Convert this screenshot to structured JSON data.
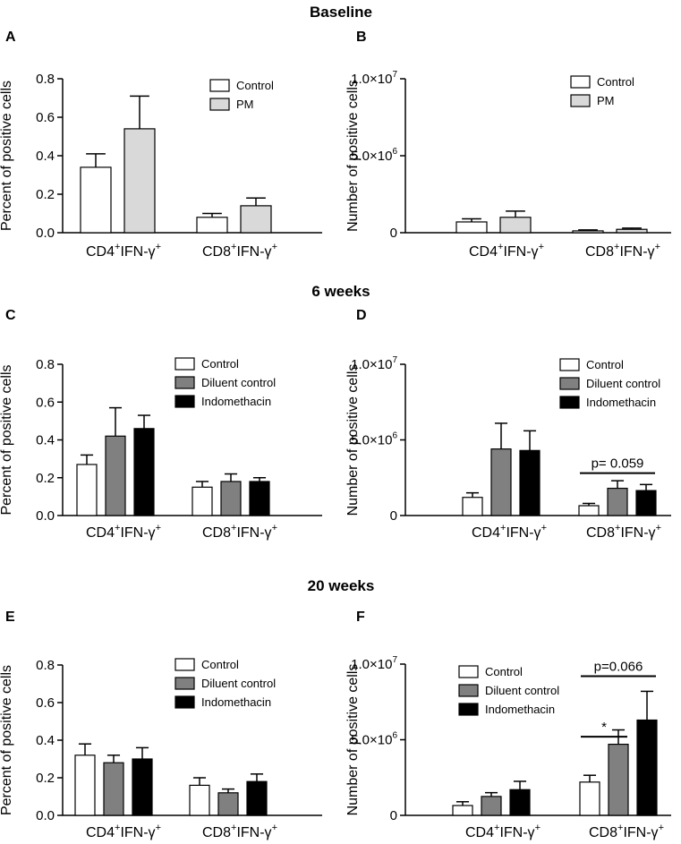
{
  "sections": [
    {
      "title": "Baseline"
    },
    {
      "title": "6 weeks"
    },
    {
      "title": "20 weeks"
    }
  ],
  "colors": {
    "Control": "#ffffff",
    "PM": "#d9d9d9",
    "Diluent control": "#808080",
    "Indomethacin": "#000000"
  },
  "chart_data": [
    {
      "type": "bar",
      "panel": "A",
      "section": "Baseline",
      "ylabel": "Percent of positive cells",
      "ylim": [
        0,
        0.8
      ],
      "yticks": [
        "0.0",
        "0.2",
        "0.4",
        "0.6",
        "0.8"
      ],
      "yticks_values": [
        0,
        0.2,
        0.4,
        0.6,
        0.8
      ],
      "categories": [
        {
          "base": "CD4",
          "sup1": "+",
          "mid": "IFN-γ",
          "sup2": "+"
        },
        {
          "base": "CD8",
          "sup1": "+",
          "mid": "IFN-γ",
          "sup2": "+"
        }
      ],
      "series": [
        {
          "name": "Control",
          "values": [
            0.34,
            0.08
          ],
          "errors": [
            0.07,
            0.02
          ]
        },
        {
          "name": "PM",
          "values": [
            0.54,
            0.14
          ],
          "errors": [
            0.17,
            0.04
          ]
        }
      ],
      "legend": "top-right",
      "annotations": []
    },
    {
      "type": "bar",
      "panel": "B",
      "section": "Baseline",
      "ylabel": "Number of positive cells",
      "ylim": [
        0,
        10000000
      ],
      "yticks": [
        {
          "plain": "0"
        },
        {
          "mant": "5.0×10",
          "exp": "6"
        },
        {
          "mant": "1.0×10",
          "exp": "7"
        }
      ],
      "yticks_values": [
        0,
        5000000,
        10000000
      ],
      "categories": [
        {
          "base": "CD4",
          "sup1": "+",
          "mid": "IFN-γ",
          "sup2": "+"
        },
        {
          "base": "CD8",
          "sup1": "+",
          "mid": "IFN-γ",
          "sup2": "+"
        }
      ],
      "series": [
        {
          "name": "Control",
          "values": [
            700000,
            120000
          ],
          "errors": [
            200000,
            60000
          ]
        },
        {
          "name": "PM",
          "values": [
            1000000,
            220000
          ],
          "errors": [
            400000,
            80000
          ]
        }
      ],
      "legend": "top-right",
      "annotations": []
    },
    {
      "type": "bar",
      "panel": "C",
      "section": "6 weeks",
      "ylabel": "Percent of positive cells",
      "ylim": [
        0,
        0.8
      ],
      "yticks": [
        "0.0",
        "0.2",
        "0.4",
        "0.6",
        "0.8"
      ],
      "yticks_values": [
        0,
        0.2,
        0.4,
        0.6,
        0.8
      ],
      "categories": [
        {
          "base": "CD4",
          "sup1": "+",
          "mid": "IFN-γ",
          "sup2": "+"
        },
        {
          "base": "CD8",
          "sup1": "+",
          "mid": "IFN-γ",
          "sup2": "+"
        }
      ],
      "series": [
        {
          "name": "Control",
          "values": [
            0.27,
            0.15
          ],
          "errors": [
            0.05,
            0.03
          ]
        },
        {
          "name": "Diluent control",
          "values": [
            0.42,
            0.18
          ],
          "errors": [
            0.15,
            0.04
          ]
        },
        {
          "name": "Indomethacin",
          "values": [
            0.46,
            0.18
          ],
          "errors": [
            0.07,
            0.02
          ]
        }
      ],
      "legend": "top-right",
      "annotations": []
    },
    {
      "type": "bar",
      "panel": "D",
      "section": "6 weeks",
      "ylabel": "Number of positive cells",
      "ylim": [
        0,
        10000000
      ],
      "yticks": [
        {
          "plain": "0"
        },
        {
          "mant": "5.0×10",
          "exp": "6"
        },
        {
          "mant": "1.0×10",
          "exp": "7"
        }
      ],
      "yticks_values": [
        0,
        5000000,
        10000000
      ],
      "categories": [
        {
          "base": "CD4",
          "sup1": "+",
          "mid": "IFN-γ",
          "sup2": "+"
        },
        {
          "base": "CD8",
          "sup1": "+",
          "mid": "IFN-γ",
          "sup2": "+"
        }
      ],
      "series": [
        {
          "name": "Control",
          "values": [
            1200000,
            650000
          ],
          "errors": [
            300000,
            150000
          ]
        },
        {
          "name": "Diluent control",
          "values": [
            4400000,
            1800000
          ],
          "errors": [
            1700000,
            500000
          ]
        },
        {
          "name": "Indomethacin",
          "values": [
            4300000,
            1650000
          ],
          "errors": [
            1300000,
            400000
          ]
        }
      ],
      "legend": "top-right",
      "annotations": [
        {
          "label": "p= 0.059",
          "category": 1,
          "from": 0,
          "to": 2,
          "y": 2800000
        }
      ]
    },
    {
      "type": "bar",
      "panel": "E",
      "section": "20 weeks",
      "ylabel": "Percent of positive cells",
      "ylim": [
        0,
        0.8
      ],
      "yticks": [
        "0.0",
        "0.2",
        "0.4",
        "0.6",
        "0.8"
      ],
      "yticks_values": [
        0,
        0.2,
        0.4,
        0.6,
        0.8
      ],
      "categories": [
        {
          "base": "CD4",
          "sup1": "+",
          "mid": "IFN-γ",
          "sup2": "+"
        },
        {
          "base": "CD8",
          "sup1": "+",
          "mid": "IFN-γ",
          "sup2": "+"
        }
      ],
      "series": [
        {
          "name": "Control",
          "values": [
            0.32,
            0.16
          ],
          "errors": [
            0.06,
            0.04
          ]
        },
        {
          "name": "Diluent control",
          "values": [
            0.28,
            0.12
          ],
          "errors": [
            0.04,
            0.02
          ]
        },
        {
          "name": "Indomethacin",
          "values": [
            0.3,
            0.18
          ],
          "errors": [
            0.06,
            0.04
          ]
        }
      ],
      "legend": "top-right",
      "annotations": []
    },
    {
      "type": "bar",
      "panel": "F",
      "section": "20 weeks",
      "ylabel": "Number of positive cells",
      "ylim": [
        0,
        10000000
      ],
      "yticks": [
        {
          "plain": "0"
        },
        {
          "mant": "5.0×10",
          "exp": "6"
        },
        {
          "mant": "1.0×10",
          "exp": "7"
        }
      ],
      "yticks_values": [
        0,
        5000000,
        10000000
      ],
      "categories": [
        {
          "base": "CD4",
          "sup1": "+",
          "mid": "IFN-γ",
          "sup2": "+"
        },
        {
          "base": "CD8",
          "sup1": "+",
          "mid": "IFN-γ",
          "sup2": "+"
        }
      ],
      "series": [
        {
          "name": "Control",
          "values": [
            650000,
            2200000
          ],
          "errors": [
            250000,
            450000
          ]
        },
        {
          "name": "Diluent control",
          "values": [
            1250000,
            4700000
          ],
          "errors": [
            250000,
            950000
          ]
        },
        {
          "name": "Indomethacin",
          "values": [
            1700000,
            6300000
          ],
          "errors": [
            550000,
            1900000
          ]
        }
      ],
      "legend": "top-left",
      "annotations": [
        {
          "label": "*",
          "category": 1,
          "from": 0,
          "to": 1,
          "y": 5200000
        },
        {
          "label": "p=0.066",
          "category": 1,
          "from": 0,
          "to": 2,
          "y": 9200000
        }
      ]
    }
  ]
}
